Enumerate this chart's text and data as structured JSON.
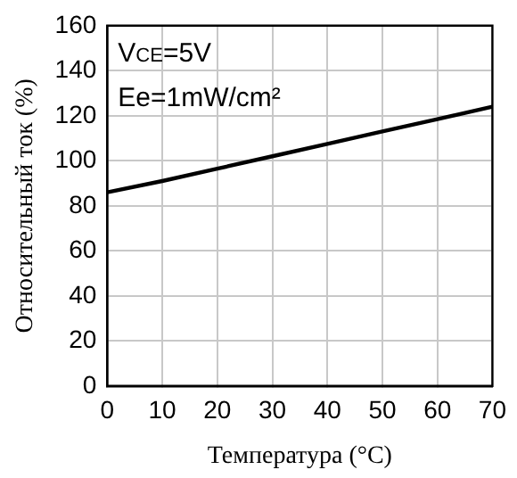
{
  "chart_data": {
    "type": "line",
    "xlabel": "Температура (°C)",
    "ylabel": "Относительный ток (%)",
    "annotations": [
      "V$_{CE}$=5V",
      "Ee=1mW/cm²"
    ],
    "x": [
      0,
      10,
      20,
      30,
      40,
      50,
      60,
      70
    ],
    "series": [
      {
        "color": "#000000",
        "values": [
          86,
          91,
          96.5,
          102,
          107.5,
          113,
          118.5,
          124
        ]
      }
    ],
    "xlim": [
      0,
      70
    ],
    "xticks": [
      0,
      10,
      20,
      30,
      40,
      50,
      60,
      70
    ],
    "ylim": [
      0,
      160
    ],
    "yticks": [
      0,
      20,
      40,
      60,
      80,
      100,
      120,
      140,
      160
    ],
    "grid": true,
    "marker": "none",
    "line_style": "solid"
  }
}
